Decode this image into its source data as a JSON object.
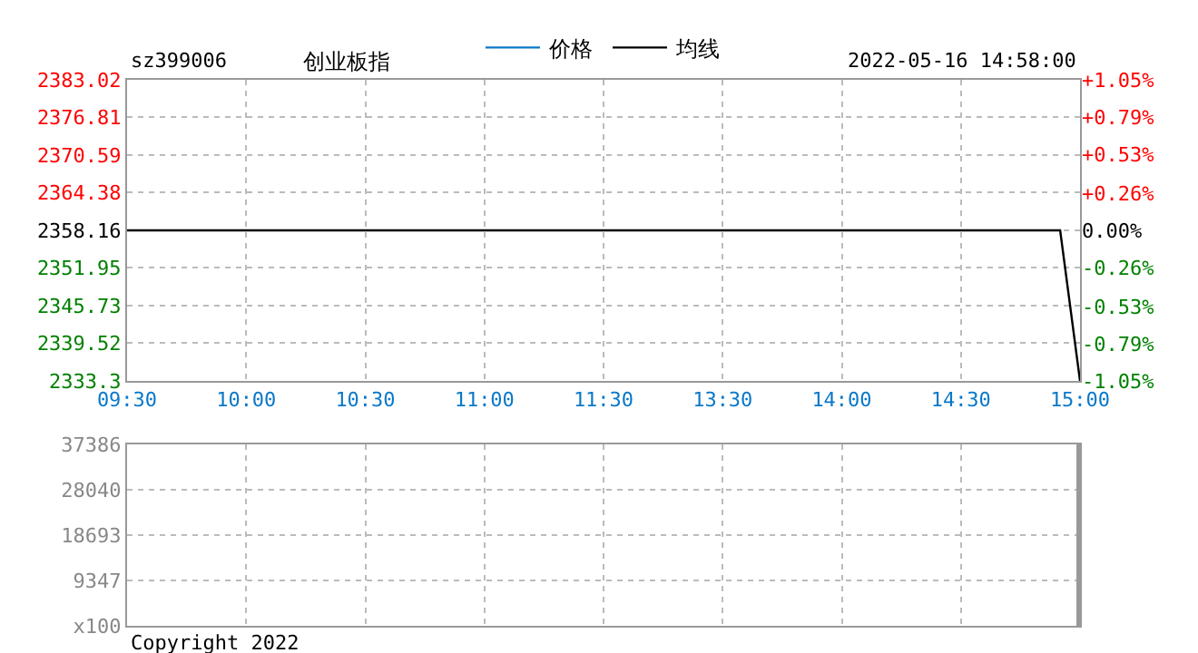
{
  "chart_data": [
    {
      "type": "line",
      "title": "sz399006",
      "subtitle": "创业板指",
      "annotations": [
        "2022-05-16 14:58:00"
      ],
      "categories": [
        "09:30",
        null,
        null,
        null,
        null,
        null,
        "10:00",
        null,
        null,
        null,
        null,
        null,
        "10:30",
        null,
        null,
        null,
        null,
        null,
        "11:00",
        null,
        null,
        null,
        null,
        null,
        "11:30",
        null,
        null,
        null,
        null,
        null,
        "13:30",
        null,
        null,
        null,
        null,
        null,
        "14:00",
        null,
        null,
        null,
        null,
        null,
        "14:30",
        null,
        null,
        null,
        null,
        null,
        "15:00"
      ],
      "series": [
        {
          "name": "价格",
          "color": "#0a78c8",
          "values": [
            null,
            null,
            null,
            null,
            null,
            null,
            null,
            null,
            null,
            null,
            null,
            null,
            null,
            null,
            null,
            null,
            null,
            null,
            null,
            null,
            null,
            null,
            null,
            null,
            null,
            null,
            null,
            null,
            null,
            null,
            null,
            null,
            null,
            null,
            null,
            null,
            null,
            null,
            null,
            null,
            null,
            null,
            null,
            null,
            null,
            null,
            null,
            null,
            null
          ]
        },
        {
          "name": "均线",
          "color": "#000000",
          "values": [
            2358.16,
            2358.16,
            2358.16,
            2358.16,
            2358.16,
            2358.16,
            2358.16,
            2358.16,
            2358.16,
            2358.16,
            2358.16,
            2358.16,
            2358.16,
            2358.16,
            2358.16,
            2358.16,
            2358.16,
            2358.16,
            2358.16,
            2358.16,
            2358.16,
            2358.16,
            2358.16,
            2358.16,
            2358.16,
            2358.16,
            2358.16,
            2358.16,
            2358.16,
            2358.16,
            2358.16,
            2358.16,
            2358.16,
            2358.16,
            2358.16,
            2358.16,
            2358.16,
            2358.16,
            2358.16,
            2358.16,
            2358.16,
            2358.16,
            2358.16,
            2358.16,
            2358.16,
            2358.16,
            2358.16,
            2358.16,
            2333.3
          ]
        }
      ],
      "ylim": [
        2333.3,
        2383.02
      ],
      "yticks": [
        2333.3,
        2339.52,
        2345.73,
        2351.95,
        2358.16,
        2364.38,
        2370.59,
        2376.81,
        2383.02
      ],
      "y2lim": [
        -1.05,
        1.05
      ],
      "y2ticks": [
        {
          "value": -1.05,
          "label": "-1.05%"
        },
        {
          "value": -0.79,
          "label": "-0.79%"
        },
        {
          "value": -0.53,
          "label": "-0.53%"
        },
        {
          "value": -0.26,
          "label": "-0.26%"
        },
        {
          "value": 0,
          "label": "0.00%"
        },
        {
          "value": 0.26,
          "label": "+0.26%"
        },
        {
          "value": 0.53,
          "label": "+0.53%"
        },
        {
          "value": 0.79,
          "label": "+0.79%"
        },
        {
          "value": 1.05,
          "label": "+1.05%"
        }
      ],
      "grid": true,
      "legend": "top",
      "line_style": "solid",
      "marker": "none"
    },
    {
      "type": "bar",
      "annotations": [
        "Copyright 2022"
      ],
      "categories": [
        null,
        null,
        null,
        null,
        null,
        null,
        null,
        null,
        null,
        null,
        null,
        null,
        null,
        null,
        null,
        null,
        null,
        null,
        null,
        null,
        null,
        null,
        null,
        null,
        null,
        null,
        null,
        null,
        null,
        null,
        null,
        null,
        null,
        null,
        null,
        null,
        null,
        null,
        null,
        null,
        null,
        null,
        null,
        null,
        null,
        null,
        null,
        null,
        null
      ],
      "values": [
        null,
        null,
        null,
        null,
        null,
        null,
        null,
        null,
        null,
        null,
        null,
        null,
        null,
        null,
        null,
        null,
        null,
        null,
        null,
        null,
        null,
        null,
        null,
        null,
        null,
        null,
        null,
        null,
        null,
        null,
        null,
        null,
        null,
        null,
        null,
        null,
        null,
        null,
        null,
        null,
        null,
        null,
        null,
        null,
        null,
        null,
        null,
        null,
        37386
      ],
      "color": "#999999",
      "ylim": [
        0,
        37386
      ],
      "yticks": [
        {
          "value": 0,
          "label": "x100"
        },
        9347,
        18693,
        28040,
        37386
      ],
      "grid": true,
      "tick_labels": "y"
    }
  ]
}
